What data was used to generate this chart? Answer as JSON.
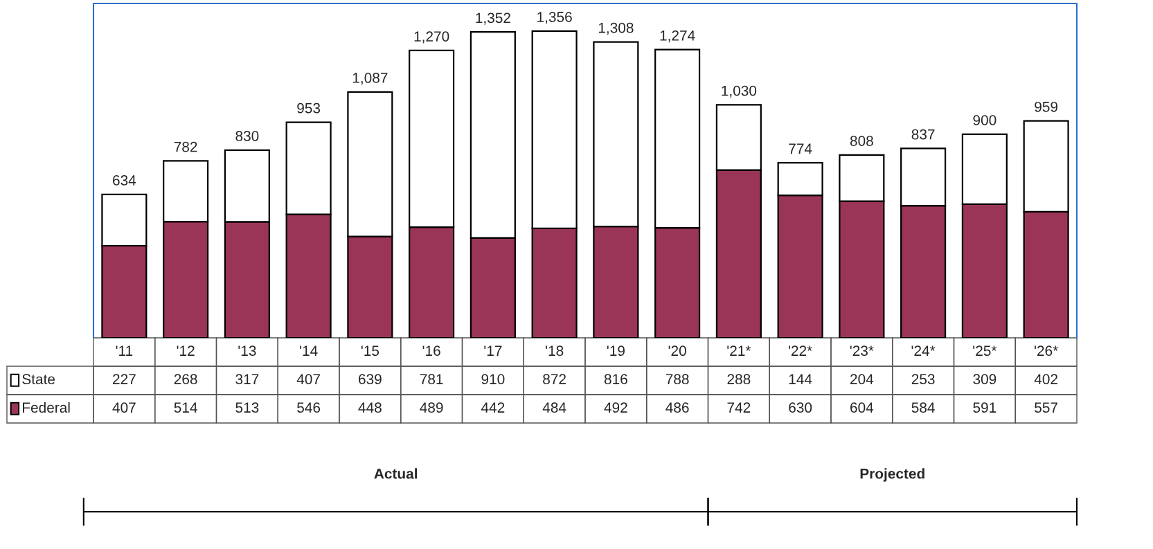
{
  "chart_data": {
    "type": "bar",
    "stacked": true,
    "data_labels": true,
    "legend": "bottom left",
    "categories": [
      "'11",
      "'12",
      "'13",
      "'14",
      "'15",
      "'16",
      "'17",
      "'18",
      "'19",
      "'20",
      "'21*",
      "'22*",
      "'23*",
      "'24*",
      "'25*",
      "'26*"
    ],
    "series": [
      {
        "name": "Federal",
        "color": "#9b3558",
        "values": [
          407,
          514,
          513,
          546,
          448,
          489,
          442,
          484,
          492,
          486,
          742,
          630,
          604,
          584,
          591,
          557
        ]
      },
      {
        "name": "State",
        "color": "#ffffff",
        "values": [
          227,
          268,
          317,
          407,
          639,
          781,
          910,
          872,
          816,
          788,
          288,
          144,
          204,
          253,
          309,
          402
        ]
      }
    ],
    "totals": [
      "634",
      "782",
      "830",
      "953",
      "1,087",
      "1,270",
      "1,352",
      "1,356",
      "1,308",
      "1,274",
      "1,030",
      "774",
      "808",
      "837",
      "900",
      "959"
    ],
    "annotations": [
      "Actual",
      "Projected"
    ]
  }
}
